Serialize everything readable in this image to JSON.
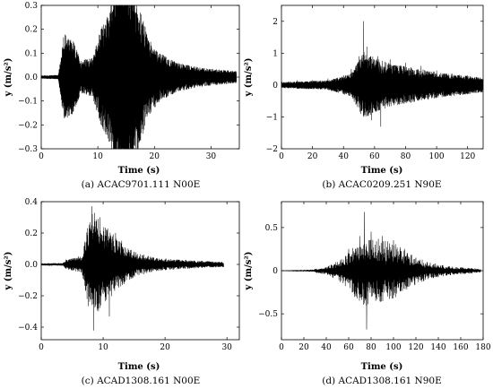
{
  "chart_data": [
    {
      "type": "line",
      "caption": "(a) ACAC9701.111 N00E",
      "xlabel": "Time (s)",
      "ylabel": "y (m/s²)",
      "xlim": [
        0,
        35
      ],
      "ylim": [
        -0.3,
        0.3
      ],
      "xticks": [
        "0",
        "10",
        "20",
        "30"
      ],
      "yticks": [
        "-0.3",
        "-0.2",
        "-0.1",
        "0.0",
        "0.1",
        "0.2",
        "0.3"
      ],
      "series": [
        {
          "values": [
            {
              "t": 0,
              "a": 0.0
            },
            {
              "t": 3,
              "a": 0.0
            },
            {
              "t": 3.8,
              "a": 0.08
            },
            {
              "t": 4.5,
              "a": 0.1
            },
            {
              "t": 5.2,
              "a": -0.1
            },
            {
              "t": 6.5,
              "a": 0.05
            },
            {
              "t": 8,
              "a": 0.03
            },
            {
              "t": 9.5,
              "a": 0.05
            },
            {
              "t": 10.5,
              "a": 0.1
            },
            {
              "t": 11.5,
              "a": -0.12
            },
            {
              "t": 12.5,
              "a": 0.15
            },
            {
              "t": 13.5,
              "a": -0.2
            },
            {
              "t": 14.4,
              "a": 0.26
            },
            {
              "t": 15.0,
              "a": -0.27
            },
            {
              "t": 15.8,
              "a": 0.2
            },
            {
              "t": 17,
              "a": 0.16
            },
            {
              "t": 18.5,
              "a": -0.1
            },
            {
              "t": 20,
              "a": 0.08
            },
            {
              "t": 22,
              "a": 0.05
            },
            {
              "t": 25,
              "a": 0.025
            },
            {
              "t": 28,
              "a": 0.02
            },
            {
              "t": 31,
              "a": 0.015
            },
            {
              "t": 34.5,
              "a": 0.01
            }
          ]
        }
      ]
    },
    {
      "type": "line",
      "caption": "(b) ACAC0209.251 N90E",
      "xlabel": "Time (s)",
      "ylabel": "y (m/s²)",
      "xlim": [
        0,
        130
      ],
      "ylim": [
        -2,
        2.5
      ],
      "xticks": [
        "0",
        "20",
        "40",
        "60",
        "80",
        "100",
        "120"
      ],
      "yticks": [
        "-2",
        "-1",
        "0",
        "1",
        "2"
      ],
      "series": [
        {
          "values": [
            {
              "t": 0,
              "a": 0.1
            },
            {
              "t": 10,
              "a": 0.15
            },
            {
              "t": 20,
              "a": 0.15
            },
            {
              "t": 30,
              "a": 0.2
            },
            {
              "t": 40,
              "a": 0.3
            },
            {
              "t": 45,
              "a": 0.5
            },
            {
              "t": 50,
              "a": 0.9
            },
            {
              "t": 53,
              "a": 2.0
            },
            {
              "t": 55,
              "a": 1.2
            },
            {
              "t": 58,
              "a": -1.1
            },
            {
              "t": 62,
              "a": 0.9
            },
            {
              "t": 64,
              "a": -1.3
            },
            {
              "t": 70,
              "a": 0.8
            },
            {
              "t": 80,
              "a": 0.7
            },
            {
              "t": 90,
              "a": 0.6
            },
            {
              "t": 100,
              "a": 0.45
            },
            {
              "t": 110,
              "a": 0.35
            },
            {
              "t": 120,
              "a": 0.3
            },
            {
              "t": 130,
              "a": 0.25
            }
          ]
        }
      ]
    },
    {
      "type": "line",
      "caption": "(c) ACAD1308.161 N00E",
      "xlabel": "Time (s)",
      "ylabel": "y (m/s²)",
      "xlim": [
        0,
        32
      ],
      "ylim": [
        -0.48,
        0.4
      ],
      "xticks": [
        "0",
        "10",
        "20",
        "30"
      ],
      "yticks": [
        "-0.4",
        "-0.2",
        "0.0",
        "0.2",
        "0.4"
      ],
      "series": [
        {
          "values": [
            {
              "t": 0,
              "a": 0.005
            },
            {
              "t": 3.5,
              "a": 0.01
            },
            {
              "t": 4,
              "a": 0.03
            },
            {
              "t": 5,
              "a": 0.03
            },
            {
              "t": 6,
              "a": 0.05
            },
            {
              "t": 7,
              "a": 0.1
            },
            {
              "t": 7.7,
              "a": 0.2
            },
            {
              "t": 8.2,
              "a": 0.37
            },
            {
              "t": 8.5,
              "a": -0.42
            },
            {
              "t": 9.5,
              "a": 0.3
            },
            {
              "t": 10.5,
              "a": 0.22
            },
            {
              "t": 11,
              "a": -0.33
            },
            {
              "t": 12,
              "a": 0.2
            },
            {
              "t": 13,
              "a": 0.15
            },
            {
              "t": 15,
              "a": 0.08
            },
            {
              "t": 18,
              "a": 0.04
            },
            {
              "t": 22,
              "a": 0.025
            },
            {
              "t": 26,
              "a": 0.02
            },
            {
              "t": 29.5,
              "a": 0.015
            }
          ]
        }
      ]
    },
    {
      "type": "line",
      "caption": "(d) ACAD1308.161 N90E",
      "xlabel": "Time (s)",
      "ylabel": "y (m/s²)",
      "xlim": [
        0,
        180
      ],
      "ylim": [
        -0.8,
        0.8
      ],
      "xticks": [
        "0",
        "20",
        "40",
        "60",
        "80",
        "100",
        "120",
        "140",
        "160",
        "180"
      ],
      "yticks": [
        "-0.5",
        "0",
        "0.5"
      ],
      "series": [
        {
          "values": [
            {
              "t": 0,
              "a": 0.0
            },
            {
              "t": 20,
              "a": 0.005
            },
            {
              "t": 30,
              "a": 0.02
            },
            {
              "t": 40,
              "a": 0.04
            },
            {
              "t": 50,
              "a": 0.1
            },
            {
              "t": 60,
              "a": 0.25
            },
            {
              "t": 70,
              "a": 0.4
            },
            {
              "t": 74,
              "a": 0.68
            },
            {
              "t": 76,
              "a": -0.68
            },
            {
              "t": 80,
              "a": 0.45
            },
            {
              "t": 90,
              "a": 0.4
            },
            {
              "t": 100,
              "a": 0.35
            },
            {
              "t": 110,
              "a": 0.25
            },
            {
              "t": 120,
              "a": 0.15
            },
            {
              "t": 130,
              "a": 0.1
            },
            {
              "t": 140,
              "a": 0.06
            },
            {
              "t": 150,
              "a": 0.05
            },
            {
              "t": 160,
              "a": 0.04
            },
            {
              "t": 170,
              "a": 0.03
            },
            {
              "t": 178,
              "a": 0.02
            }
          ]
        }
      ]
    }
  ]
}
